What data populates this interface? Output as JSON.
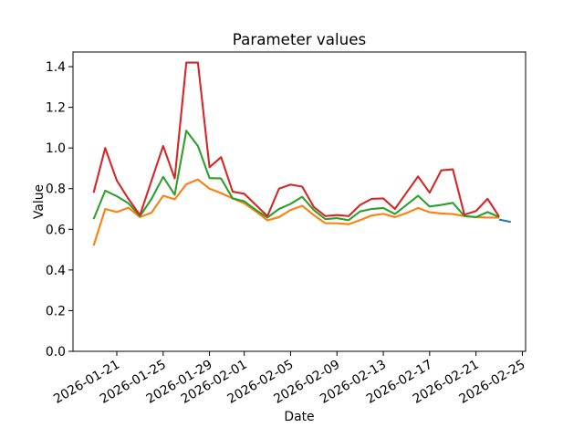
{
  "figure": {
    "background_color": "#ffffff",
    "text_color": "#000000",
    "spine_color": "#000000"
  },
  "chart_data": {
    "type": "line",
    "title": "Parameter values",
    "xlabel": "Date",
    "ylabel": "Value",
    "grid": false,
    "legend": "none",
    "ylim": [
      0,
      1.472
    ],
    "y_ticks": [
      0.0,
      0.2,
      0.4,
      0.6,
      0.8,
      1.0,
      1.2,
      1.4
    ],
    "x_tick_labels": [
      "2026-01-21",
      "2026-01-25",
      "2026-01-29",
      "2026-02-01",
      "2026-02-05",
      "2026-02-09",
      "2026-02-13",
      "2026-02-17",
      "2026-02-21",
      "2026-02-25"
    ],
    "x_tick_rotation_deg": 30,
    "xlim_day_offsets": [
      -1.78,
      37.28
    ],
    "dates": [
      "2026-01-19",
      "2026-01-20",
      "2026-01-21",
      "2026-01-22",
      "2026-01-23",
      "2026-01-24",
      "2026-01-25",
      "2026-01-26",
      "2026-01-27",
      "2026-01-28",
      "2026-01-29",
      "2026-01-30",
      "2026-01-31",
      "2026-02-01",
      "2026-02-02",
      "2026-02-03",
      "2026-02-04",
      "2026-02-05",
      "2026-02-06",
      "2026-02-07",
      "2026-02-08",
      "2026-02-09",
      "2026-02-10",
      "2026-02-11",
      "2026-02-12",
      "2026-02-13",
      "2026-02-14",
      "2026-02-15",
      "2026-02-16",
      "2026-02-17",
      "2026-02-18",
      "2026-02-19",
      "2026-02-20",
      "2026-02-21",
      "2026-02-22",
      "2026-02-23",
      "2026-02-24"
    ],
    "series": [
      {
        "name": "blue",
        "color": "#1f77b4",
        "values": [
          null,
          null,
          null,
          null,
          null,
          null,
          null,
          null,
          null,
          null,
          null,
          null,
          null,
          null,
          null,
          null,
          null,
          null,
          null,
          null,
          null,
          null,
          null,
          null,
          null,
          null,
          null,
          null,
          null,
          null,
          null,
          null,
          null,
          null,
          null,
          0.648,
          0.636
        ]
      },
      {
        "name": "orange",
        "color": "#ff7f0e",
        "values": [
          0.52,
          0.7,
          0.685,
          0.706,
          0.66,
          0.682,
          0.765,
          0.748,
          0.822,
          0.845,
          0.8,
          0.778,
          0.752,
          0.728,
          0.688,
          0.644,
          0.66,
          0.695,
          0.716,
          0.67,
          0.63,
          0.63,
          0.625,
          0.645,
          0.668,
          0.676,
          0.66,
          0.68,
          0.705,
          0.684,
          0.678,
          0.675,
          0.665,
          0.66,
          0.658,
          0.657,
          null
        ]
      },
      {
        "name": "green",
        "color": "#2ca02c",
        "values": [
          0.65,
          0.79,
          0.763,
          0.728,
          0.665,
          0.75,
          0.858,
          0.77,
          1.085,
          1.01,
          0.852,
          0.85,
          0.752,
          0.738,
          0.695,
          0.658,
          0.7,
          0.725,
          0.76,
          0.695,
          0.65,
          0.655,
          0.645,
          0.688,
          0.7,
          0.705,
          0.675,
          0.72,
          0.765,
          0.712,
          0.72,
          0.73,
          0.665,
          0.66,
          0.685,
          0.66,
          null
        ]
      },
      {
        "name": "red",
        "color": "#d62728",
        "values": [
          0.78,
          1.0,
          0.84,
          0.75,
          0.67,
          0.84,
          1.01,
          0.85,
          1.42,
          1.42,
          0.905,
          0.955,
          0.785,
          0.775,
          0.72,
          0.665,
          0.8,
          0.82,
          0.81,
          0.71,
          0.665,
          0.67,
          0.665,
          0.72,
          0.75,
          0.752,
          0.7,
          0.78,
          0.86,
          0.78,
          0.89,
          0.895,
          0.672,
          0.69,
          0.75,
          0.662,
          null
        ]
      }
    ]
  }
}
